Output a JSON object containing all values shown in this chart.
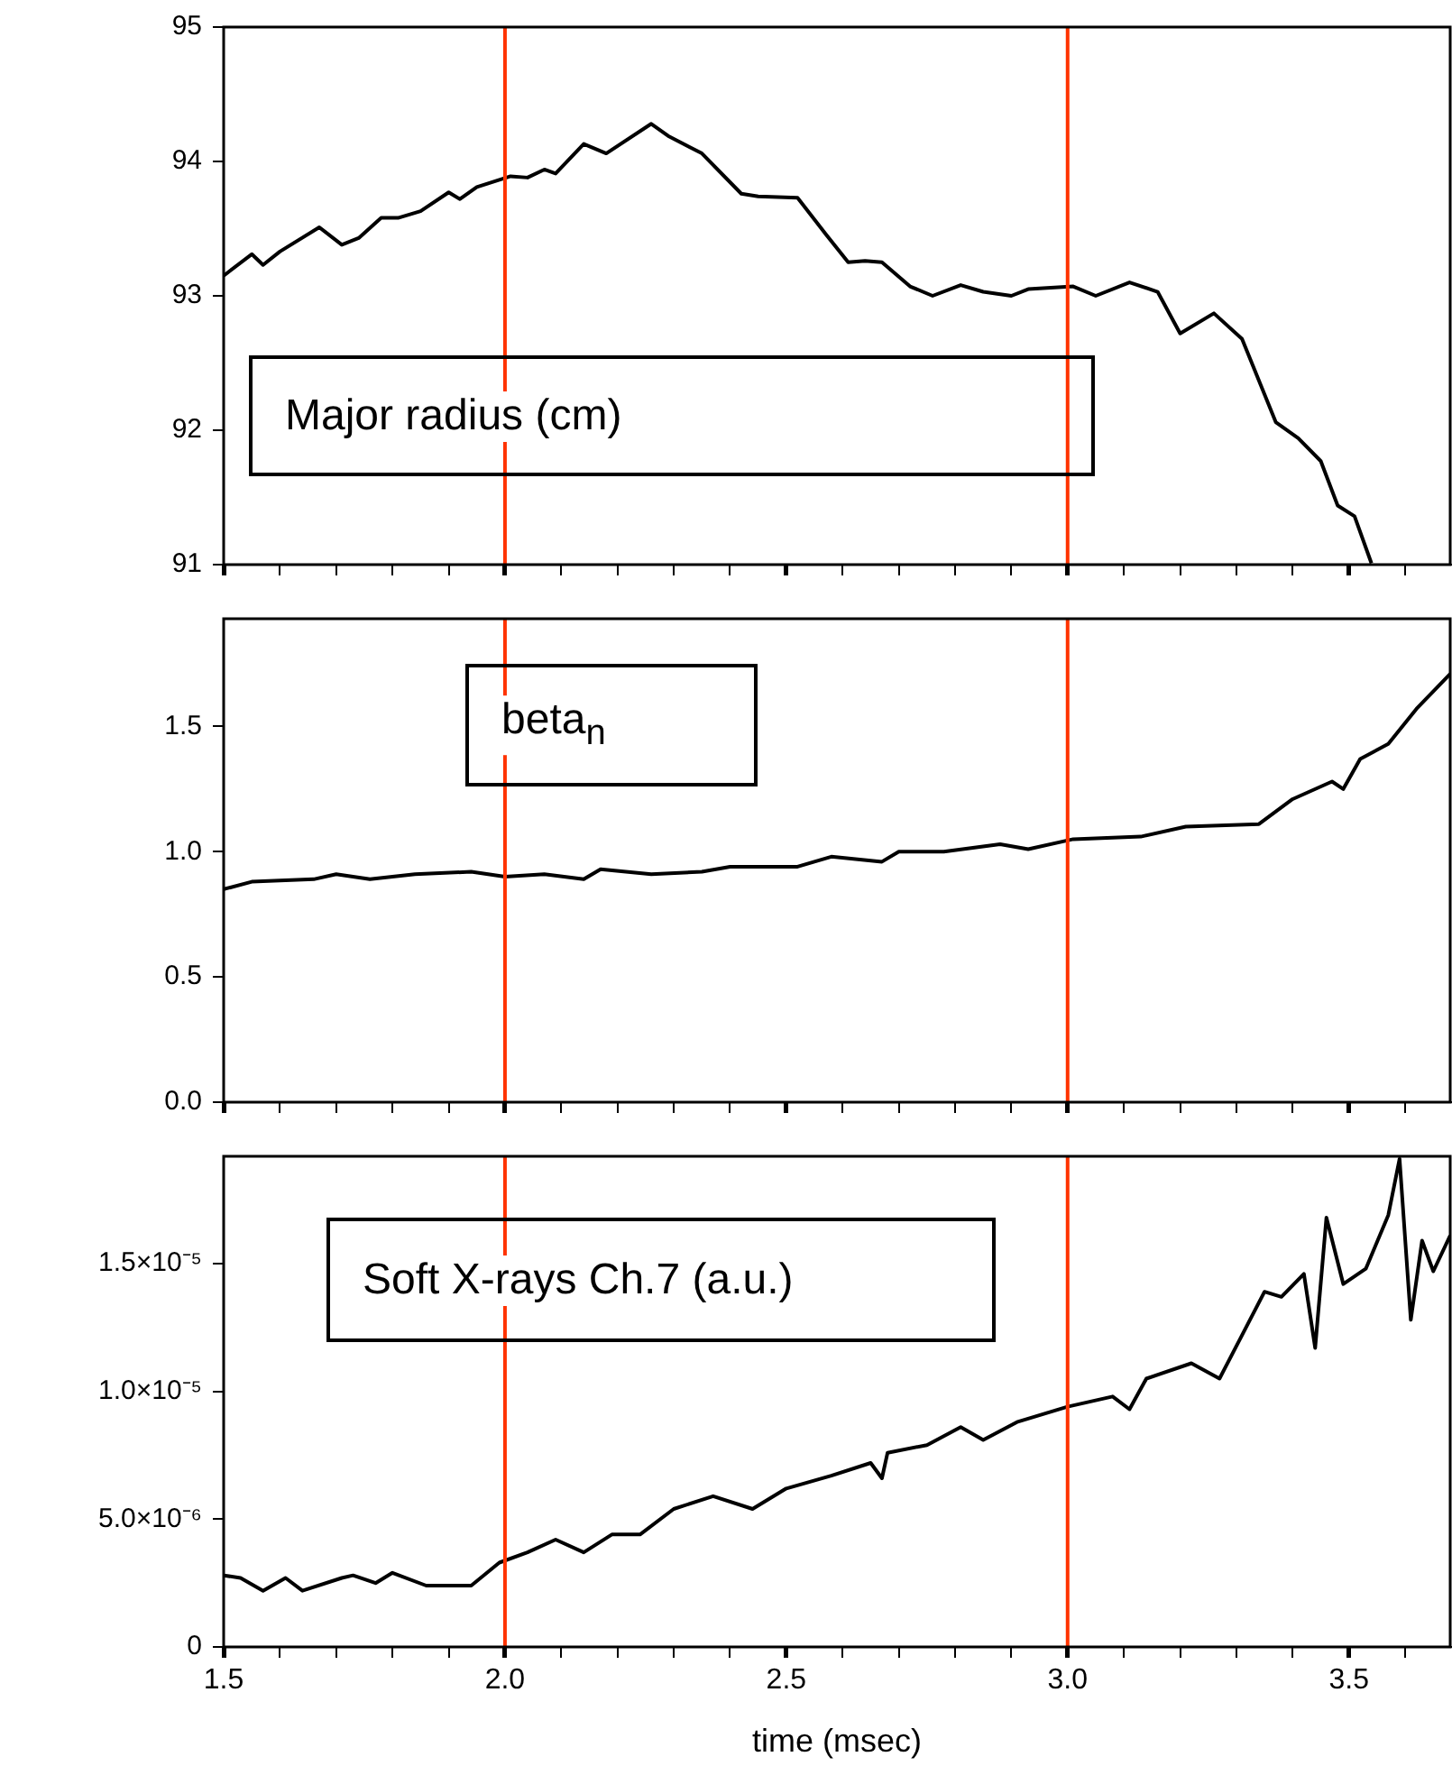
{
  "chart_data": [
    {
      "type": "line",
      "annotations": [
        "Major radius (cm)"
      ],
      "marker": "none",
      "tick_labels": "y",
      "xlim": [
        1.5,
        3.68
      ],
      "ylim": [
        91,
        95
      ],
      "xticks": [
        1.5,
        {
          "value": 1.6,
          "label": null
        },
        {
          "value": 1.7,
          "label": null
        },
        {
          "value": 1.8,
          "label": null
        },
        {
          "value": 1.9,
          "label": null
        },
        2,
        {
          "value": 2.1,
          "label": null
        },
        {
          "value": 2.2,
          "label": null
        },
        {
          "value": 2.3,
          "label": null
        },
        {
          "value": 2.4,
          "label": null
        },
        2.5,
        {
          "value": 2.6,
          "label": null
        },
        {
          "value": 2.7,
          "label": null
        },
        {
          "value": 2.8,
          "label": null
        },
        {
          "value": 2.9,
          "label": null
        },
        3,
        {
          "value": 3.1,
          "label": null
        },
        {
          "value": 3.2,
          "label": null
        },
        {
          "value": 3.3,
          "label": null
        },
        {
          "value": 3.4,
          "label": null
        },
        3.5,
        {
          "value": 3.6,
          "label": null
        }
      ],
      "yticks": [
        91,
        92,
        93,
        94,
        95
      ],
      "ref_lines": [
        {
          "axis": "x",
          "value": 2.0,
          "color": "#ff3300"
        },
        {
          "axis": "x",
          "value": 3.0,
          "color": "#ff3300"
        }
      ],
      "series": [
        {
          "color": "#000000",
          "x": [
            1.5,
            1.55,
            1.57,
            1.6,
            1.67,
            1.71,
            1.74,
            1.78,
            1.81,
            1.85,
            1.9,
            1.92,
            1.95,
            2.01,
            2.04,
            2.07,
            2.09,
            2.14,
            2.18,
            2.26,
            2.29,
            2.35,
            2.42,
            2.45,
            2.52,
            2.57,
            2.61,
            2.64,
            2.67,
            2.72,
            2.76,
            2.81,
            2.85,
            2.9,
            2.93,
            3.01,
            3.05,
            3.11,
            3.16,
            3.2,
            3.26,
            3.31,
            3.37,
            3.41,
            3.45,
            3.48,
            3.51,
            3.54
          ],
          "values": [
            93.15,
            93.31,
            93.23,
            93.33,
            93.51,
            93.38,
            93.43,
            93.58,
            93.58,
            93.63,
            93.77,
            93.72,
            93.81,
            93.89,
            93.88,
            93.94,
            93.91,
            94.13,
            94.06,
            94.28,
            94.19,
            94.06,
            93.76,
            93.74,
            93.73,
            93.46,
            93.25,
            93.26,
            93.25,
            93.07,
            93.0,
            93.08,
            93.03,
            93.0,
            93.05,
            93.07,
            93.0,
            93.1,
            93.03,
            92.72,
            92.87,
            92.68,
            92.06,
            91.94,
            91.77,
            91.44,
            91.36,
            91.01
          ]
        }
      ]
    },
    {
      "type": "line",
      "annotations": [
        "beta$_{n}$"
      ],
      "marker": "none",
      "tick_labels": "y",
      "xlim": [
        1.5,
        3.68
      ],
      "ylim": [
        0,
        1.93
      ],
      "xticks": [
        1.5,
        {
          "value": 1.6,
          "label": null
        },
        {
          "value": 1.7,
          "label": null
        },
        {
          "value": 1.8,
          "label": null
        },
        {
          "value": 1.9,
          "label": null
        },
        2,
        {
          "value": 2.1,
          "label": null
        },
        {
          "value": 2.2,
          "label": null
        },
        {
          "value": 2.3,
          "label": null
        },
        {
          "value": 2.4,
          "label": null
        },
        2.5,
        {
          "value": 2.6,
          "label": null
        },
        {
          "value": 2.7,
          "label": null
        },
        {
          "value": 2.8,
          "label": null
        },
        {
          "value": 2.9,
          "label": null
        },
        3,
        {
          "value": 3.1,
          "label": null
        },
        {
          "value": 3.2,
          "label": null
        },
        {
          "value": 3.3,
          "label": null
        },
        {
          "value": 3.4,
          "label": null
        },
        3.5,
        {
          "value": 3.6,
          "label": null
        }
      ],
      "yticks": [
        {
          "value": 0,
          "label": "0.0"
        },
        0.5,
        {
          "value": 1,
          "label": "1.0"
        },
        1.5
      ],
      "ref_lines": [
        {
          "axis": "x",
          "value": 2.0,
          "color": "#ff3300"
        },
        {
          "axis": "x",
          "value": 3.0,
          "color": "#ff3300"
        }
      ],
      "series": [
        {
          "color": "#000000",
          "x": [
            1.5,
            1.55,
            1.66,
            1.7,
            1.76,
            1.84,
            1.94,
            2.0,
            2.07,
            2.14,
            2.17,
            2.26,
            2.35,
            2.4,
            2.52,
            2.58,
            2.67,
            2.7,
            2.78,
            2.88,
            2.93,
            3.01,
            3.13,
            3.21,
            3.34,
            3.4,
            3.47,
            3.49,
            3.52,
            3.57,
            3.62,
            3.68
          ],
          "values": [
            0.85,
            0.88,
            0.89,
            0.91,
            0.89,
            0.91,
            0.92,
            0.9,
            0.91,
            0.89,
            0.93,
            0.91,
            0.92,
            0.94,
            0.94,
            0.98,
            0.96,
            1.0,
            1.0,
            1.03,
            1.01,
            1.05,
            1.06,
            1.1,
            1.11,
            1.21,
            1.28,
            1.25,
            1.37,
            1.43,
            1.57,
            1.71
          ]
        }
      ]
    },
    {
      "type": "line",
      "annotations": [
        "Soft X-rays Ch.7 (a.u.)"
      ],
      "xlabel": "time (msec)",
      "marker": "none",
      "xlim": [
        1.5,
        3.68
      ],
      "ylim": [
        0,
        1.92e-05
      ],
      "xticks": [
        1.5,
        {
          "value": 1.6,
          "label": null
        },
        {
          "value": 1.7,
          "label": null
        },
        {
          "value": 1.8,
          "label": null
        },
        {
          "value": 1.9,
          "label": null
        },
        {
          "value": 2.0,
          "label": "2.0"
        },
        {
          "value": 2.1,
          "label": null
        },
        {
          "value": 2.2,
          "label": null
        },
        {
          "value": 2.3,
          "label": null
        },
        {
          "value": 2.4,
          "label": null
        },
        2.5,
        {
          "value": 2.6,
          "label": null
        },
        {
          "value": 2.7,
          "label": null
        },
        {
          "value": 2.8,
          "label": null
        },
        {
          "value": 2.9,
          "label": null
        },
        {
          "value": 3.0,
          "label": "3.0"
        },
        {
          "value": 3.1,
          "label": null
        },
        {
          "value": 3.2,
          "label": null
        },
        {
          "value": 3.3,
          "label": null
        },
        {
          "value": 3.4,
          "label": null
        },
        3.5,
        {
          "value": 3.6,
          "label": null
        }
      ],
      "yticks": [
        0,
        {
          "value": 5e-06,
          "label": "5.0×10⁻⁶"
        },
        {
          "value": 1e-05,
          "label": "1.0×10⁻⁵"
        },
        {
          "value": 1.5e-05,
          "label": "1.5×10⁻⁵"
        }
      ],
      "ref_lines": [
        {
          "axis": "x",
          "value": 2.0,
          "color": "#ff3300"
        },
        {
          "axis": "x",
          "value": 3.0,
          "color": "#ff3300"
        }
      ],
      "series": [
        {
          "color": "#000000",
          "x": [
            1.5,
            1.53,
            1.57,
            1.61,
            1.64,
            1.71,
            1.73,
            1.77,
            1.8,
            1.86,
            1.94,
            1.99,
            2.04,
            2.09,
            2.14,
            2.19,
            2.24,
            2.3,
            2.37,
            2.44,
            2.5,
            2.58,
            2.65,
            2.67,
            2.68,
            2.75,
            2.81,
            2.85,
            2.91,
            3.0,
            3.08,
            3.11,
            3.14,
            3.22,
            3.27,
            3.31,
            3.35,
            3.38,
            3.42,
            3.44,
            3.46,
            3.49,
            3.53,
            3.57,
            3.59,
            3.61,
            3.63,
            3.65,
            3.68
          ],
          "values": [
            2.8e-06,
            2.7e-06,
            2.2e-06,
            2.7e-06,
            2.2e-06,
            2.7e-06,
            2.8e-06,
            2.5e-06,
            2.9e-06,
            2.4e-06,
            2.4e-06,
            3.3e-06,
            3.7e-06,
            4.2e-06,
            3.7e-06,
            4.4e-06,
            4.4e-06,
            5.4e-06,
            5.9e-06,
            5.4e-06,
            6.2e-06,
            6.7e-06,
            7.2e-06,
            6.6e-06,
            7.6e-06,
            7.9e-06,
            8.6e-06,
            8.1e-06,
            8.8e-06,
            9.4e-06,
            9.8e-06,
            9.3e-06,
            1.05e-05,
            1.11e-05,
            1.05e-05,
            1.22e-05,
            1.39e-05,
            1.37e-05,
            1.46e-05,
            1.17e-05,
            1.68e-05,
            1.42e-05,
            1.48e-05,
            1.69e-05,
            1.91e-05,
            1.28e-05,
            1.59e-05,
            1.47e-05,
            1.61e-05
          ]
        }
      ]
    }
  ]
}
